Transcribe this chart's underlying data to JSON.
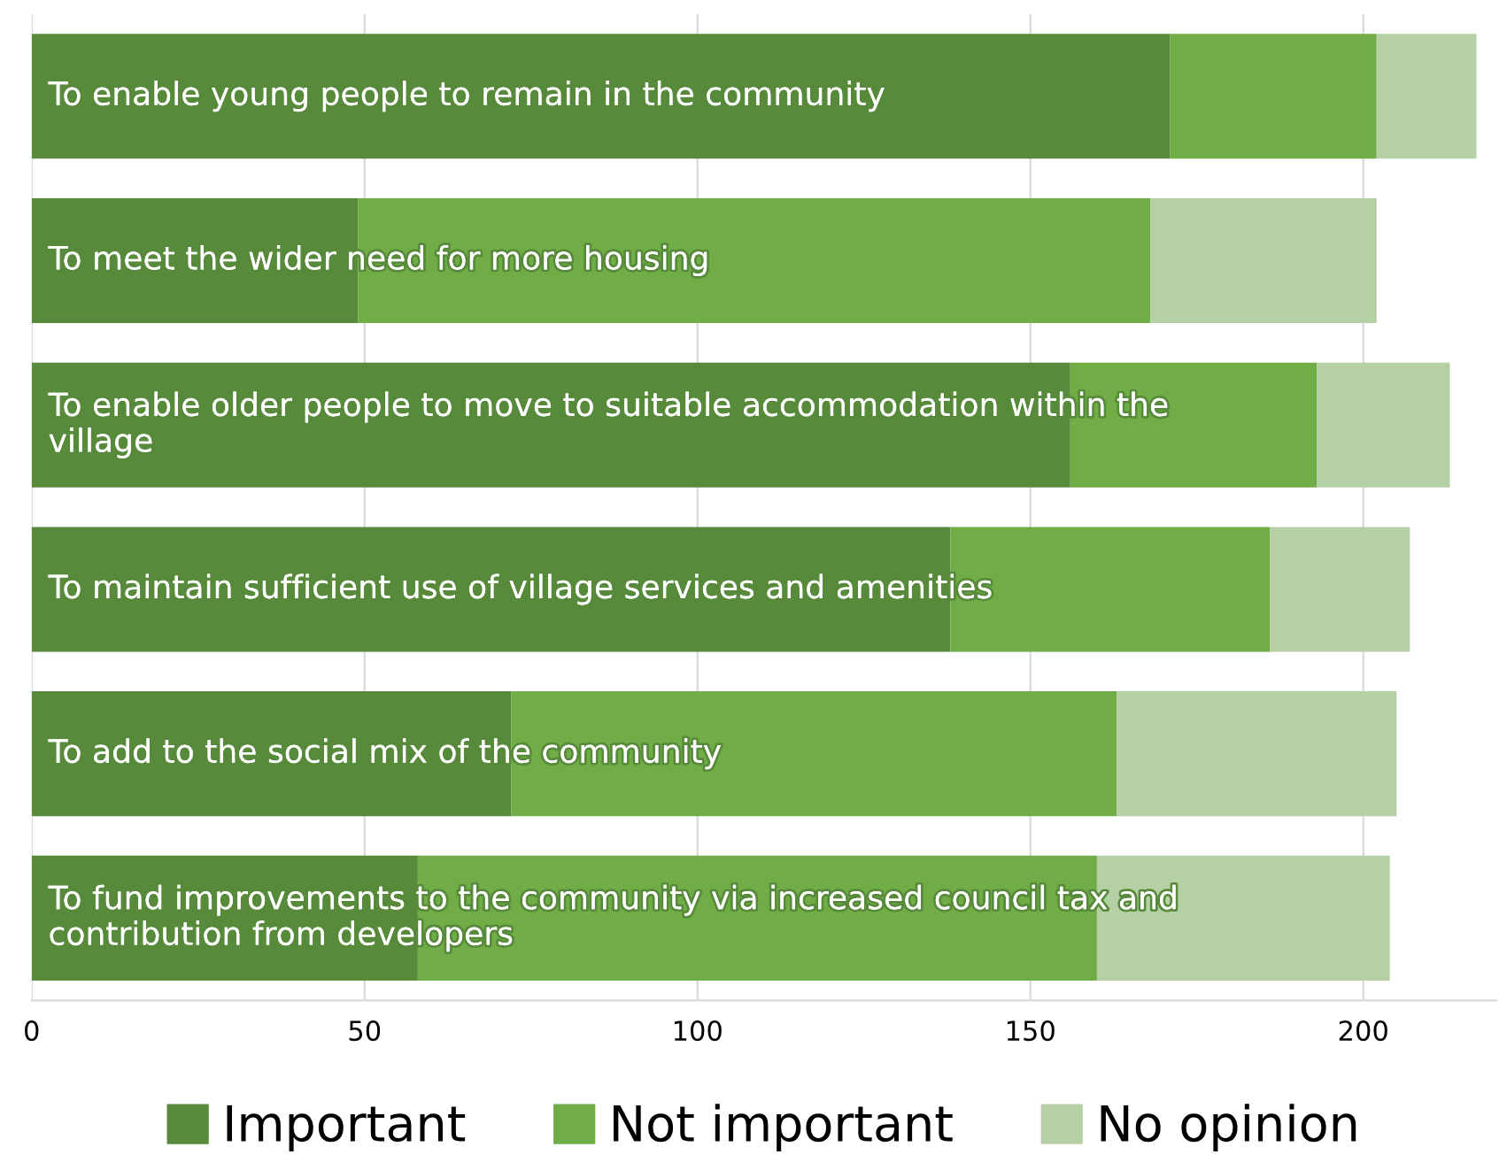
{
  "chart_data": {
    "type": "bar",
    "orientation": "horizontal",
    "stacked": true,
    "categories": [
      "To enable young people to remain in the community",
      "To meet the wider need for more housing",
      "To enable older people to move to suitable accommodation within the village",
      "To maintain sufficient use of village services and amenities",
      "To add to the social mix of the community",
      "To fund improvements to the community via increased council tax and contribution from developers"
    ],
    "series": [
      {
        "name": "Important",
        "color": "#578a3a",
        "values": [
          171,
          49,
          156,
          138,
          72,
          58
        ]
      },
      {
        "name": "Not important",
        "color": "#70ad47",
        "values": [
          31,
          119,
          37,
          48,
          91,
          102
        ]
      },
      {
        "name": "No opinion",
        "color": "#b5d0a5",
        "values": [
          15,
          34,
          20,
          21,
          42,
          44
        ]
      }
    ],
    "xlim": [
      0,
      220
    ],
    "xticks": [
      0,
      50,
      100,
      150,
      200
    ],
    "grid": "x",
    "legend": "bottom"
  }
}
